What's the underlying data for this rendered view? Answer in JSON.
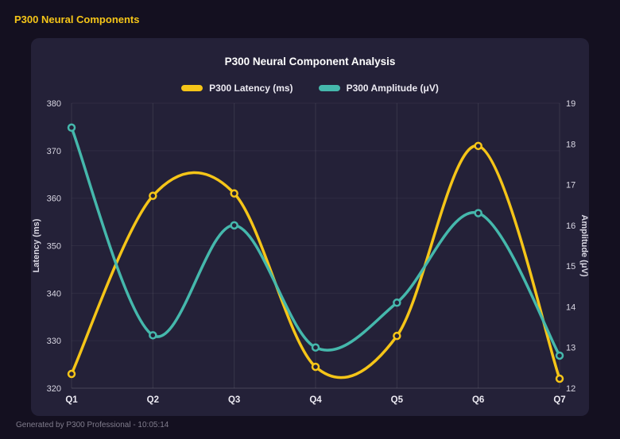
{
  "app": {
    "header_title": "P300 Neural Components",
    "footer": "Generated by P300 Professional - 10:05:14"
  },
  "chart": {
    "title": "P300 Neural Component Analysis"
  },
  "theme": {
    "background": "#141020",
    "panel": "#242138",
    "title_color": "#ffffff",
    "text_color": "#d8d6e2",
    "muted": "#817d8d",
    "accent": "#f5c518",
    "grid_color": "rgba(255,255,255,0.09)"
  },
  "chart_data": {
    "type": "line",
    "smooth": true,
    "grid": true,
    "legend_position": "top",
    "categories": [
      "Q1",
      "Q2",
      "Q3",
      "Q4",
      "Q5",
      "Q6",
      "Q7"
    ],
    "series": [
      {
        "name": "P300 Latency (ms)",
        "axis": "left",
        "color": "#f5c518",
        "values": [
          323,
          360.5,
          361,
          324.5,
          331,
          371,
          322
        ]
      },
      {
        "name": "P300 Amplitude (μV)",
        "axis": "right",
        "color": "#45b8ac",
        "values": [
          18.4,
          13.3,
          16.0,
          13.0,
          14.1,
          16.3,
          12.8
        ]
      }
    ],
    "left_axis": {
      "label": "Latency (ms)",
      "min": 320,
      "max": 380,
      "step": 10
    },
    "right_axis": {
      "label": "Amplitude (μV)",
      "min": 12,
      "max": 19,
      "step": 1
    }
  }
}
